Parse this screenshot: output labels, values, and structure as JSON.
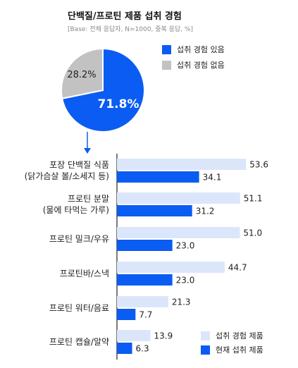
{
  "title": "단백질/프로틴 제품 섭취 경험",
  "subtitle": "[Base: 전체 응답자, N=1000, 중복 응답, %]",
  "colors": {
    "blue": "#0a5cf2",
    "light_blue": "#dce6fb",
    "gray": "#c2c2c2",
    "axis": "#222222"
  },
  "chart_data": [
    {
      "type": "pie",
      "slices": [
        {
          "label": "섭취 경험 있음",
          "value": 71.8,
          "value_label": "71.8%",
          "color": "#0a5cf2"
        },
        {
          "label": "섭취 경험 없음",
          "value": 28.2,
          "value_label": "28.2%",
          "color": "#c2c2c2"
        }
      ],
      "legend": "right"
    },
    {
      "type": "bar",
      "orientation": "horizontal",
      "categories": [
        [
          "포장 단백질 식품",
          "(닭가슴살 볼/소세지 등)"
        ],
        [
          "프로틴 분말",
          "(물에 타먹는 가루)"
        ],
        [
          "프로틴 밀크/우유"
        ],
        [
          "프로틴바/스낵"
        ],
        [
          "프로틴 워터/음료"
        ],
        [
          "프로틴 캡슐/알약"
        ]
      ],
      "series": [
        {
          "name": "섭취 경험 제품",
          "values": [
            53.6,
            51.1,
            51.0,
            44.7,
            21.3,
            13.9
          ],
          "labels": [
            "53.6",
            "51.1",
            "51.0",
            "44.7",
            "21.3",
            "13.9"
          ],
          "color": "#dce6fb"
        },
        {
          "name": "현재 섭취 제품",
          "values": [
            34.1,
            31.2,
            23.0,
            23.0,
            7.7,
            6.3
          ],
          "labels": [
            "34.1",
            "31.2",
            "23.0",
            "23.0",
            "7.7",
            "6.3"
          ],
          "color": "#0a5cf2"
        }
      ],
      "xlim": [
        0,
        60
      ],
      "grid": false,
      "legend": "bottom-right"
    }
  ]
}
